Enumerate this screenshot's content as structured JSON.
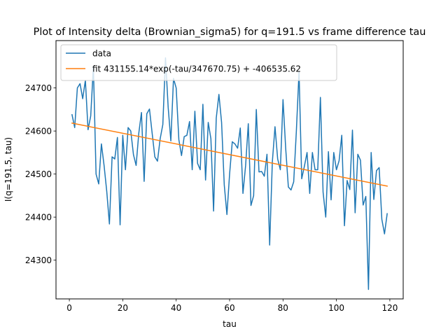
{
  "chart_data": {
    "type": "line",
    "title": "Plot of Intensity delta (Brownian_sigma5) for q=191.5 vs frame difference tau",
    "xlabel": "tau",
    "ylabel": "I(q=191.5, tau)",
    "xlim": [
      -5,
      125
    ],
    "ylim": [
      24210,
      24810
    ],
    "xticks": [
      0,
      20,
      40,
      60,
      80,
      100,
      120
    ],
    "yticks": [
      24300,
      24400,
      24500,
      24600,
      24700
    ],
    "grid": false,
    "legend_position": "upper-left",
    "series": [
      {
        "name": "data",
        "color": "#1f77b4",
        "x": [
          1,
          2,
          3,
          4,
          5,
          6,
          7,
          8,
          9,
          10,
          11,
          12,
          13,
          14,
          15,
          16,
          17,
          18,
          19,
          20,
          21,
          22,
          23,
          24,
          25,
          26,
          27,
          28,
          29,
          30,
          31,
          32,
          33,
          34,
          35,
          36,
          37,
          38,
          39,
          40,
          41,
          42,
          43,
          44,
          45,
          46,
          47,
          48,
          49,
          50,
          51,
          52,
          53,
          54,
          55,
          56,
          57,
          58,
          59,
          60,
          61,
          62,
          63,
          64,
          65,
          66,
          67,
          68,
          69,
          70,
          71,
          72,
          73,
          74,
          75,
          76,
          77,
          78,
          79,
          80,
          81,
          82,
          83,
          84,
          85,
          86,
          87,
          88,
          89,
          90,
          91,
          92,
          93,
          94,
          95,
          96,
          97,
          98,
          99,
          100,
          101,
          102,
          103,
          104,
          105,
          106,
          107,
          108,
          109,
          110,
          111,
          112,
          113,
          114,
          115,
          116,
          117,
          118,
          119
        ],
        "y": [
          24638,
          24608,
          24700,
          24710,
          24675,
          24718,
          24603,
          24635,
          24750,
          24500,
          24477,
          24570,
          24520,
          24460,
          24384,
          24540,
          24535,
          24585,
          24382,
          24590,
          24510,
          24608,
          24600,
          24545,
          24520,
          24595,
          24643,
          24483,
          24640,
          24651,
          24595,
          24540,
          24530,
          24582,
          24615,
          24770,
          24655,
          24577,
          24722,
          24700,
          24580,
          24543,
          24587,
          24590,
          24622,
          24510,
          24646,
          24525,
          24510,
          24662,
          24486,
          24620,
          24582,
          24414,
          24630,
          24685,
          24620,
          24475,
          24406,
          24500,
          24575,
          24570,
          24560,
          24607,
          24455,
          24520,
          24617,
          24427,
          24450,
          24650,
          24505,
          24506,
          24495,
          24546,
          24335,
          24528,
          24610,
          24535,
          24510,
          24673,
          24560,
          24470,
          24463,
          24482,
          24600,
          24738,
          24489,
          24518,
          24550,
          24455,
          24550,
          24510,
          24510,
          24678,
          24458,
          24400,
          24552,
          24440,
          24550,
          24510,
          24531,
          24590,
          24380,
          24485,
          24464,
          24602,
          24410,
          24546,
          24532,
          24428,
          24448,
          24232,
          24550,
          24441,
          24508,
          24515,
          24395,
          24361,
          24408
        ]
      },
      {
        "name": "fit 431155.14*exp(-tau/347670.75) + -406535.62",
        "color": "#ff7f0e",
        "x": [
          1,
          119
        ],
        "y": [
          24618.3,
          24472.0
        ]
      }
    ]
  }
}
